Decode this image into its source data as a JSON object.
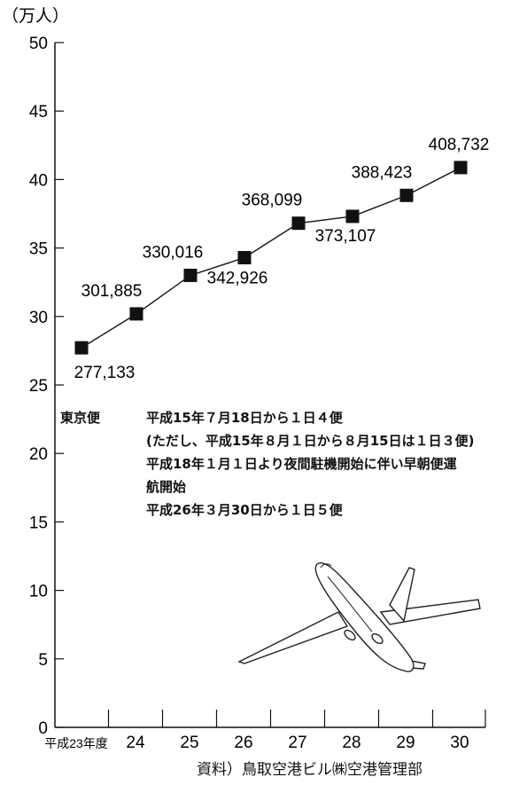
{
  "chart_data": {
    "type": "line",
    "ylabel": "（万人）",
    "ylim": [
      0,
      50
    ],
    "yticks": [
      0,
      5,
      10,
      15,
      20,
      25,
      30,
      35,
      40,
      45,
      50
    ],
    "categories": [
      "平成23年度",
      "24",
      "25",
      "26",
      "27",
      "28",
      "29",
      "30"
    ],
    "values": [
      27.7133,
      30.1885,
      33.0016,
      34.2926,
      36.8099,
      37.3107,
      38.8423,
      40.8732
    ],
    "data_labels": [
      "277,133",
      "301,885",
      "330,016",
      "342,926",
      "368,099",
      "373,107",
      "388,423",
      "408,732"
    ],
    "marker_color": "#111111",
    "line_color": "#111111"
  },
  "notes": {
    "heading": "東京便",
    "lines": [
      "平成15年７月18日から１日４便",
      "(ただし、平成15年８月１日から８月15日は１日３便)",
      "平成18年１月１日より夜間駐機開始に伴い早朝便運",
      "航開始",
      "平成26年３月30日から１日５便"
    ]
  },
  "source": "資料）鳥取空港ビル㈱空港管理部"
}
